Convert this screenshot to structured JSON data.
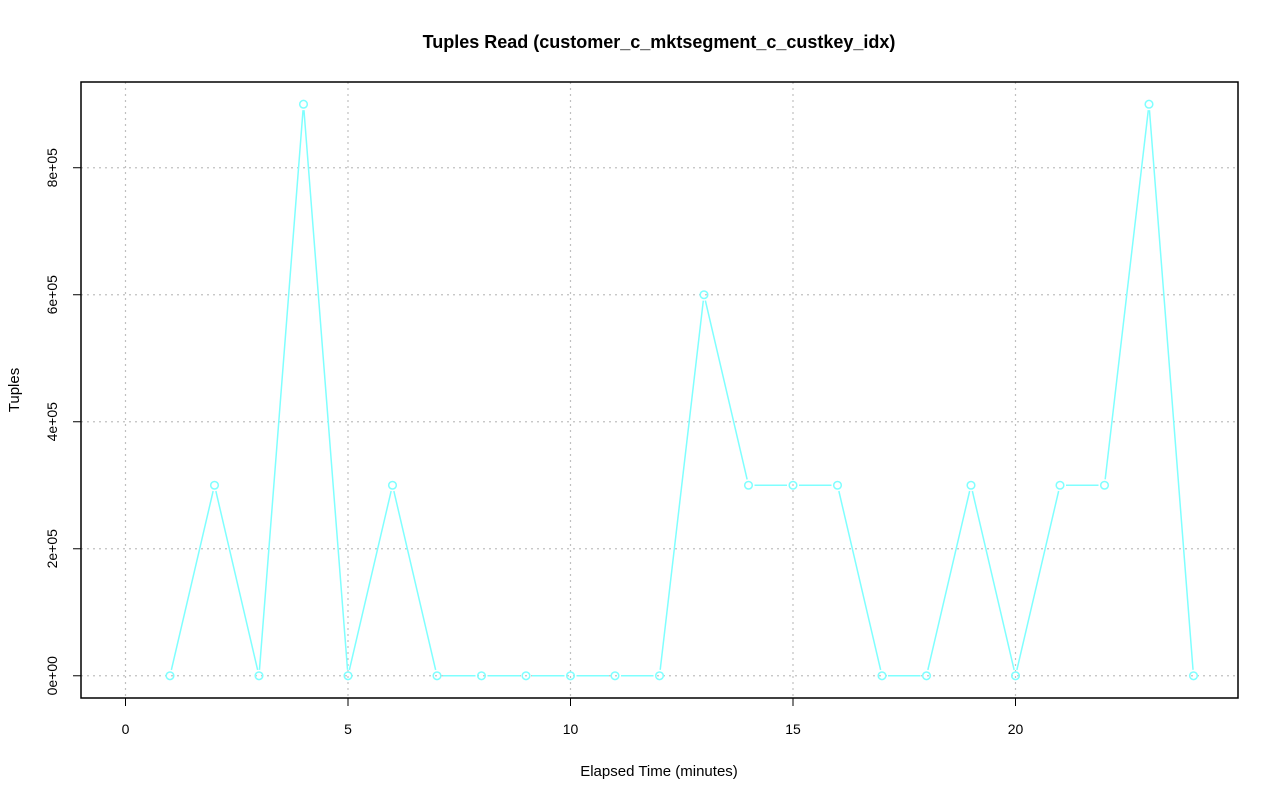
{
  "chart_data": {
    "type": "line",
    "title": "Tuples Read (customer_c_mktsegment_c_custkey_idx)",
    "xlabel": "Elapsed Time (minutes)",
    "ylabel": "Tuples",
    "xlim": [
      -1,
      25
    ],
    "ylim": [
      -35000,
      935000
    ],
    "grid": true,
    "x_ticks": [
      0,
      5,
      10,
      15,
      20
    ],
    "x_tick_labels": [
      "0",
      "5",
      "10",
      "15",
      "20"
    ],
    "y_ticks": [
      0,
      200000,
      400000,
      600000,
      800000
    ],
    "y_tick_labels": [
      "0e+00",
      "2e+05",
      "4e+05",
      "6e+05",
      "8e+05"
    ],
    "series": [
      {
        "color": "#7fffff",
        "marker": "open-circle",
        "x": [
          1,
          2,
          3,
          4,
          5,
          6,
          7,
          8,
          9,
          10,
          11,
          12,
          13,
          14,
          15,
          16,
          17,
          18,
          19,
          20,
          21,
          22,
          23,
          24
        ],
        "y": [
          0,
          300000,
          0,
          900000,
          0,
          300000,
          0,
          0,
          0,
          0,
          0,
          0,
          600000,
          300000,
          300000,
          300000,
          0,
          0,
          300000,
          0,
          300000,
          300000,
          900000,
          0
        ]
      }
    ]
  }
}
